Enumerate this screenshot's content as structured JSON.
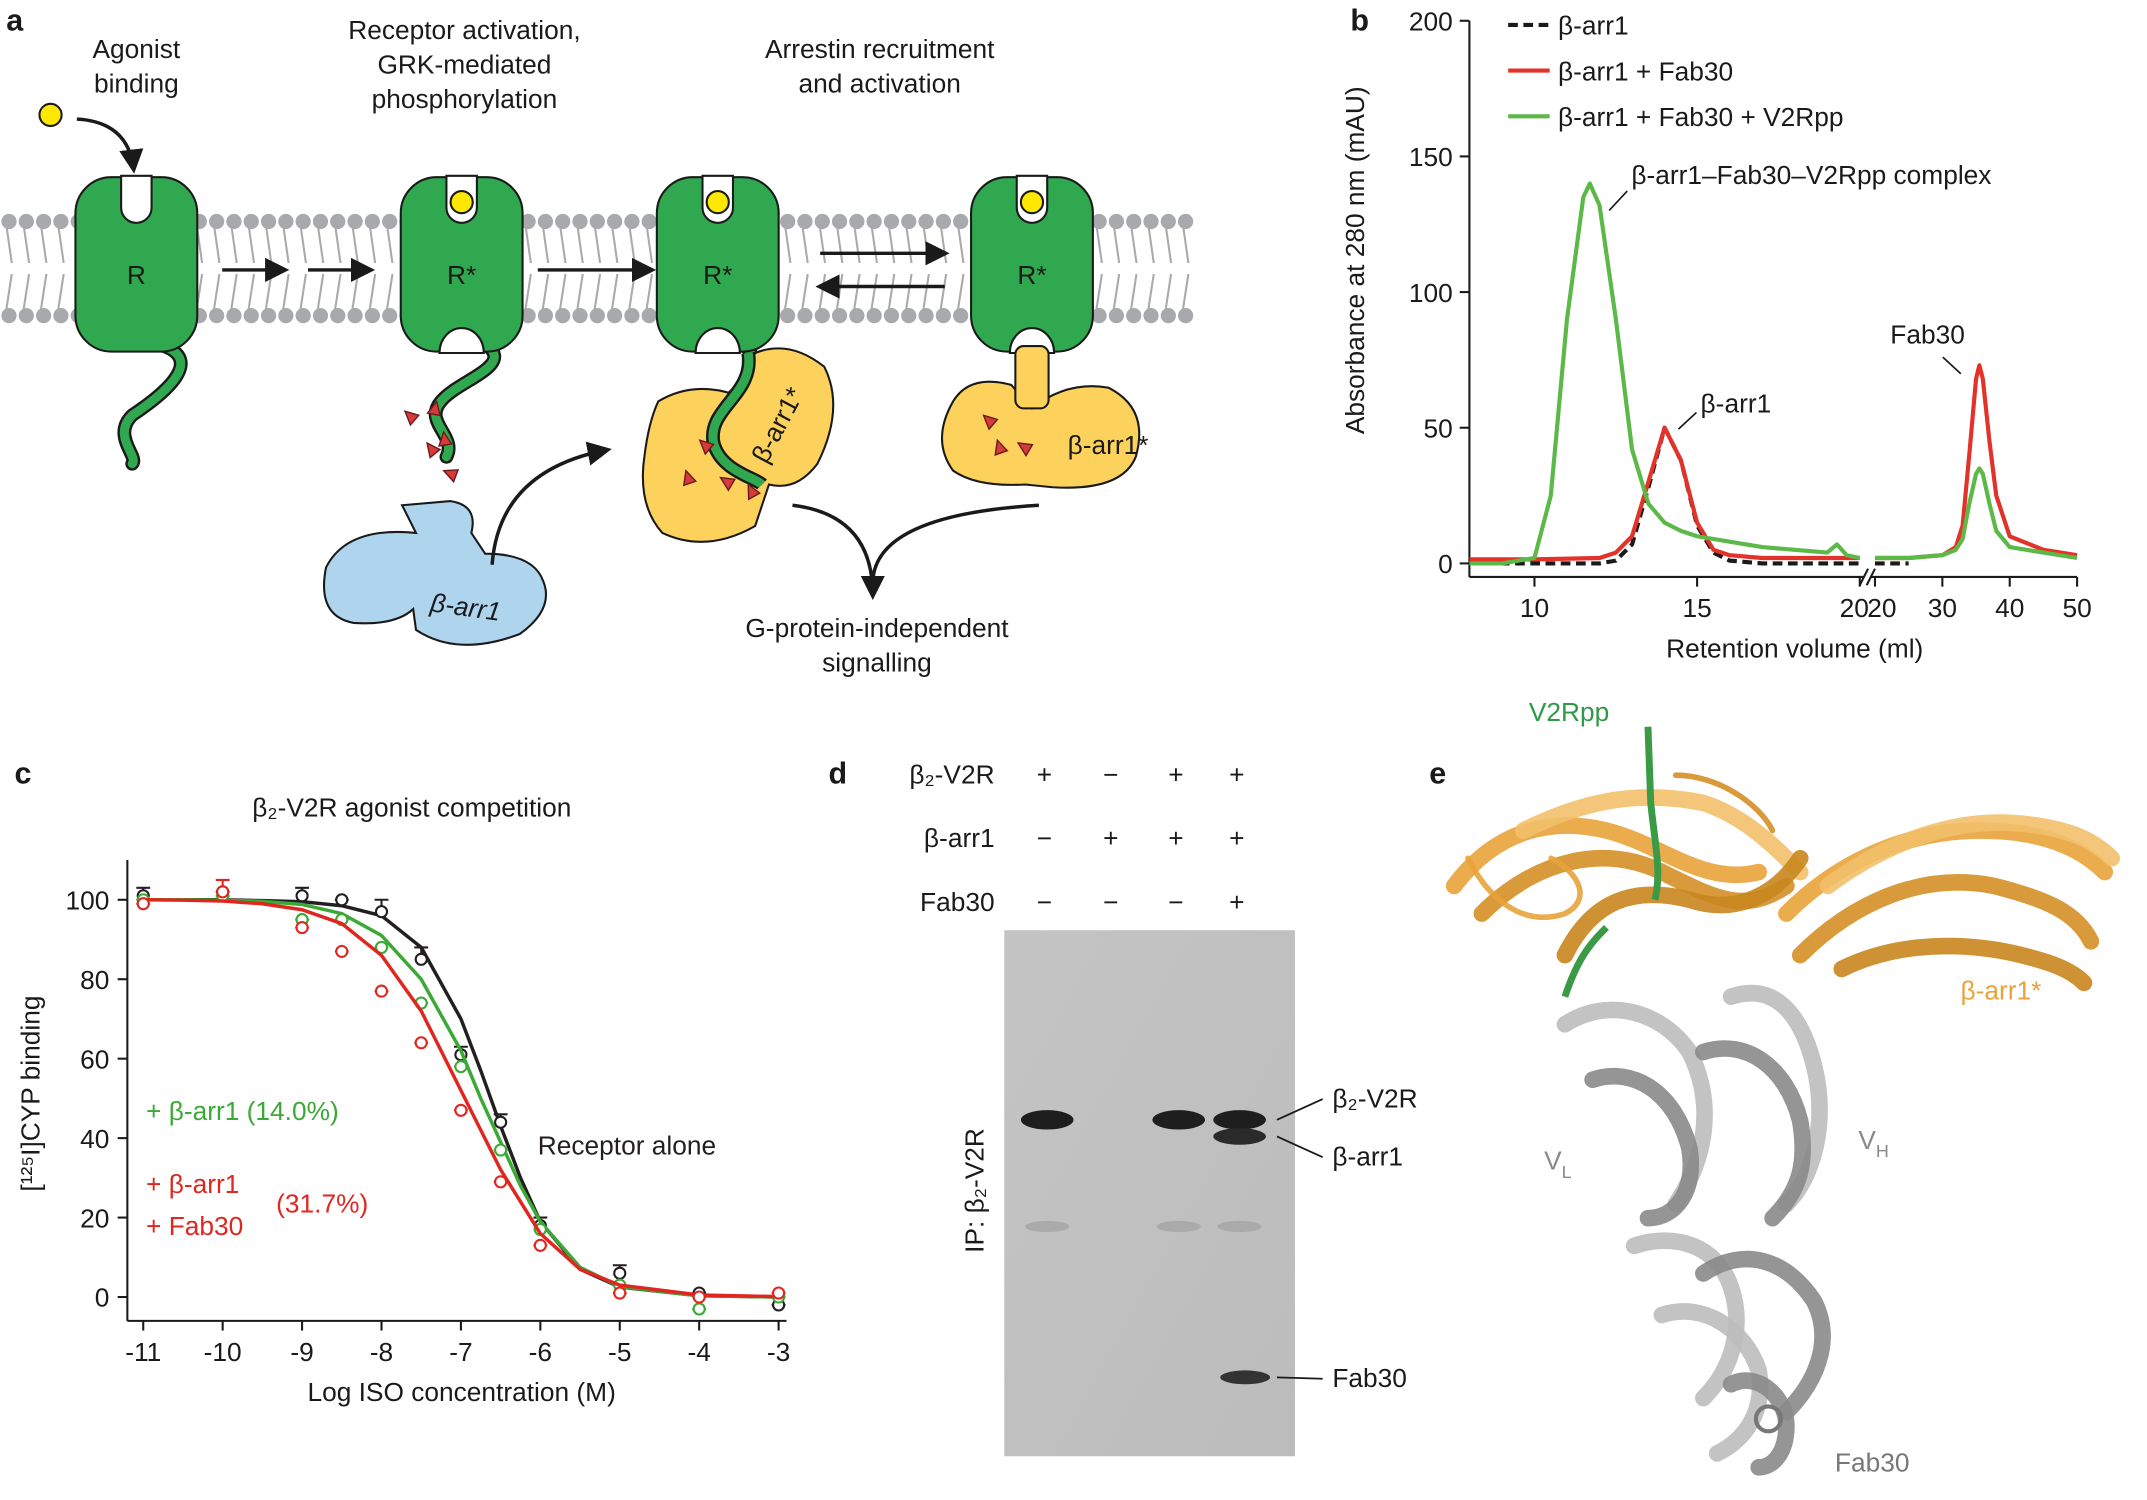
{
  "panel_labels": [
    "a",
    "b",
    "c",
    "d",
    "e"
  ],
  "panel_a": {
    "steps": [
      [
        "Agonist",
        "binding"
      ],
      [
        "Receptor activation,",
        "GRK-mediated",
        "phosphorylation"
      ],
      [
        "Arrestin recruitment",
        "and activation"
      ]
    ],
    "receptors": [
      "R",
      "R*",
      "R*",
      "R*"
    ],
    "arrestin": "β-arr1",
    "active_arrestin": [
      "β-arr1*",
      "β-arr1*"
    ],
    "output": [
      "G-protein-independent",
      "signalling"
    ]
  },
  "chart_data": [
    {
      "type": "line",
      "ylabel": "Absorbance at 280 nm (mAU)",
      "xlabel": "Retention volume (ml)",
      "ylim": [
        -5,
        200
      ],
      "yticks": [
        0,
        50,
        100,
        150,
        200
      ],
      "xlim": [
        8,
        20
      ],
      "xticks": [
        10,
        15,
        20
      ],
      "x2lim": [
        20,
        50
      ],
      "x2ticks": [
        20,
        30,
        40,
        50
      ],
      "legend": "upper left",
      "series": [
        {
          "name": "β-arr1",
          "color": "#1a1a1a",
          "dashed": true,
          "x": [
            8,
            9,
            10,
            11,
            12,
            12.5,
            13,
            13.5,
            14,
            14.5,
            15,
            15.5,
            16,
            17,
            18,
            19,
            20
          ],
          "values": [
            0,
            0,
            0,
            0,
            0,
            1,
            7,
            28,
            50,
            38,
            14,
            4,
            1,
            0,
            0,
            0,
            0
          ],
          "x2": [
            20,
            22,
            25
          ],
          "values2": [
            0,
            0,
            0
          ]
        },
        {
          "name": "β-arr1 + Fab30",
          "color": "#e3322a",
          "dashed": false,
          "x": [
            8,
            10,
            12,
            12.5,
            13,
            13.5,
            14,
            14.5,
            15,
            15.5,
            16,
            17,
            18,
            19,
            20
          ],
          "values": [
            1.5,
            1.5,
            2,
            4,
            10,
            30,
            50,
            38,
            15,
            5,
            3,
            2,
            2,
            2,
            2
          ],
          "x2": [
            20,
            25,
            30,
            32,
            33,
            34,
            35,
            35.5,
            36,
            37,
            38,
            40,
            45,
            50
          ],
          "values2": [
            2,
            2,
            3,
            6,
            14,
            40,
            68,
            73,
            68,
            45,
            25,
            10,
            5,
            3
          ]
        },
        {
          "name": "β-arr1 + Fab30 + V2Rpp",
          "color": "#5cb947",
          "dashed": false,
          "x": [
            8,
            9,
            10,
            10.5,
            11,
            11.5,
            11.7,
            12,
            12.5,
            13,
            13.5,
            14,
            14.5,
            15,
            16,
            17,
            18,
            19,
            19.3,
            19.6,
            20
          ],
          "values": [
            0,
            0,
            2,
            25,
            90,
            135,
            140,
            132,
            90,
            42,
            22,
            15,
            12,
            10,
            8,
            6,
            5,
            4,
            7,
            3,
            2
          ],
          "x2": [
            20,
            25,
            30,
            32,
            33,
            34,
            35,
            35.5,
            36,
            37,
            38,
            40,
            45,
            50
          ],
          "values2": [
            2,
            2,
            3,
            5,
            9,
            22,
            33,
            35,
            33,
            22,
            12,
            6,
            4,
            2
          ]
        }
      ],
      "annotations": [
        {
          "text": "β-arr1–Fab30–V2Rpp complex"
        },
        {
          "text": "β-arr1"
        },
        {
          "text": "Fab30"
        }
      ]
    },
    {
      "type": "scatter",
      "title": "β₂-V2R agonist competition",
      "ylabel": "[¹²⁵I]CYP binding",
      "xlabel": "Log ISO concentration (M)",
      "xlim": [
        -11.2,
        -2.9
      ],
      "xticks": [
        -11,
        -10,
        -9,
        -8,
        -7,
        -6,
        -5,
        -4,
        -3
      ],
      "ylim": [
        -6,
        110
      ],
      "yticks": [
        0,
        20,
        40,
        60,
        80,
        100
      ],
      "x": [
        -11,
        -10,
        -9,
        -8.5,
        -8,
        -7.5,
        -7,
        -6.5,
        -6,
        -5,
        -4,
        -3
      ],
      "fit_x": [
        -11,
        -10.5,
        -10,
        -9.5,
        -9,
        -8.5,
        -8,
        -7.5,
        -7,
        -6.75,
        -6.5,
        -6.25,
        -6,
        -5.5,
        -5,
        -4,
        -3
      ],
      "series": [
        {
          "color": "#231f20",
          "values": [
            101,
            102,
            101,
            100,
            97,
            85,
            61,
            44,
            18,
            6,
            1,
            -2
          ],
          "errors": [
            2,
            0,
            2,
            0,
            3,
            3,
            2,
            2,
            2,
            2,
            0,
            0
          ],
          "fit": [
            100,
            100,
            100,
            99.8,
            99.5,
            98.5,
            96,
            88,
            70,
            57,
            43,
            30,
            19,
            7,
            2.5,
            0.3,
            0
          ]
        },
        {
          "color": "#3aa935",
          "values": [
            100,
            101,
            95,
            95,
            88,
            74,
            58,
            37,
            17,
            3,
            -3,
            0
          ],
          "errors": [
            0,
            0,
            0,
            0,
            0,
            0,
            0,
            0,
            0,
            0,
            0,
            0
          ],
          "fit": [
            100,
            100,
            99.9,
            99.6,
            98.8,
            96.5,
            91,
            80,
            62,
            50,
            39,
            28,
            19,
            7.5,
            2.6,
            0.3,
            0
          ]
        },
        {
          "color": "#e0261f",
          "values": [
            99,
            102,
            93,
            87,
            77,
            64,
            47,
            29,
            13,
            1,
            0,
            1
          ],
          "errors": [
            0,
            3,
            0,
            0,
            0,
            0,
            0,
            0,
            0,
            0,
            0,
            0
          ],
          "fit": [
            100,
            99.9,
            99.7,
            99,
            97.5,
            94,
            86,
            72,
            52,
            42,
            32,
            24,
            16,
            7,
            3,
            0.5,
            0.1
          ]
        }
      ],
      "annotations": [
        {
          "text": "+ β-arr1 (14.0%)",
          "color": "#3aa935"
        },
        {
          "text": "Receptor alone",
          "color": "#231f20"
        },
        {
          "text": "+ β-arr1",
          "color": "#e0261f"
        },
        {
          "text": "+ Fab30",
          "color": "#e0261f"
        },
        {
          "text": "(31.7%)",
          "color": "#e0261f"
        }
      ]
    }
  ],
  "panel_d": {
    "rows": [
      {
        "label": "β₂-V2R",
        "signs": [
          "+",
          "−",
          "+",
          "+"
        ]
      },
      {
        "label": "β-arr1",
        "signs": [
          "−",
          "+",
          "+",
          "+"
        ]
      },
      {
        "label": "Fab30",
        "signs": [
          "−",
          "−",
          "−",
          "+"
        ]
      }
    ],
    "bands": [
      "β₂-V2R",
      "β-arr1",
      "Fab30"
    ],
    "side_label": "IP: β₂-V2R"
  },
  "panel_e": {
    "peptide": "V2Rpp",
    "arrestin": "β-arr1*",
    "light": {
      "base": "V",
      "sub": "L"
    },
    "heavy": {
      "base": "V",
      "sub": "H"
    },
    "fab": "Fab30"
  }
}
